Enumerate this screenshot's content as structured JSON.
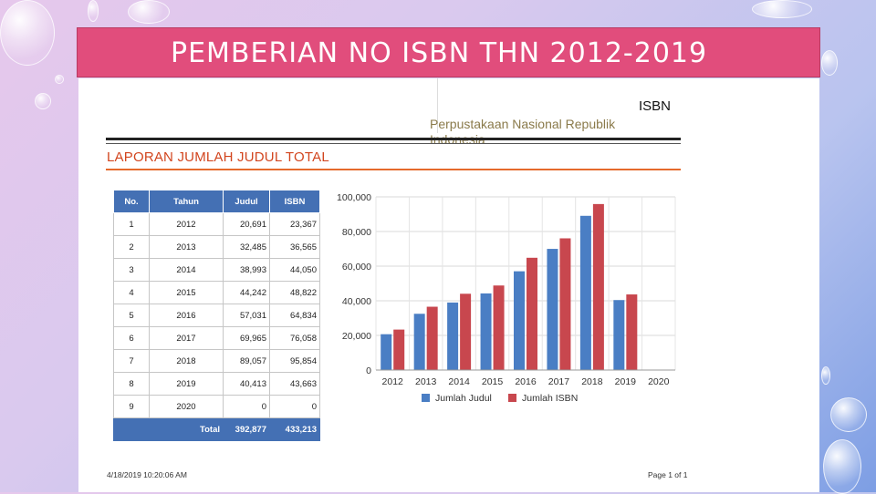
{
  "slide_title": "PEMBERIAN NO ISBN THN 2012-2019",
  "doc": {
    "isbn_label": "ISBN",
    "org_line1": "Perpustakaan Nasional Republik",
    "org_line2": "Indonesia",
    "report_title": "LAPORAN JUMLAH JUDUL TOTAL",
    "footer_date": "4/18/2019 10:20:06 AM",
    "footer_page": "Page 1 of 1"
  },
  "table": {
    "headers": [
      "No.",
      "Tahun",
      "Judul",
      "ISBN"
    ],
    "rows": [
      [
        "1",
        "2012",
        "20,691",
        "23,367"
      ],
      [
        "2",
        "2013",
        "32,485",
        "36,565"
      ],
      [
        "3",
        "2014",
        "38,993",
        "44,050"
      ],
      [
        "4",
        "2015",
        "44,242",
        "48,822"
      ],
      [
        "5",
        "2016",
        "57,031",
        "64,834"
      ],
      [
        "6",
        "2017",
        "69,965",
        "76,058"
      ],
      [
        "7",
        "2018",
        "89,057",
        "95,854"
      ],
      [
        "8",
        "2019",
        "40,413",
        "43,663"
      ],
      [
        "9",
        "2020",
        "0",
        "0"
      ]
    ],
    "total": {
      "label": "Total",
      "judul": "392,877",
      "isbn": "433,213"
    }
  },
  "chart_data": {
    "type": "bar",
    "categories": [
      "2012",
      "2013",
      "2014",
      "2015",
      "2016",
      "2017",
      "2018",
      "2019",
      "2020"
    ],
    "series": [
      {
        "name": "Jumlah Judul",
        "color": "#4a7ec4",
        "values": [
          20691,
          32485,
          38993,
          44242,
          57031,
          69965,
          89057,
          40413,
          0
        ]
      },
      {
        "name": "Jumlah ISBN",
        "color": "#c8474e",
        "values": [
          23367,
          36565,
          44050,
          48822,
          64834,
          76058,
          95854,
          43663,
          0
        ]
      }
    ],
    "ylim": [
      0,
      100000
    ],
    "yticks": [
      0,
      20000,
      40000,
      60000,
      80000,
      100000
    ],
    "ytick_labels": [
      "0",
      "20,000",
      "40,000",
      "60,000",
      "80,000",
      "100,000"
    ],
    "grid": true,
    "legend_position": "bottom"
  }
}
